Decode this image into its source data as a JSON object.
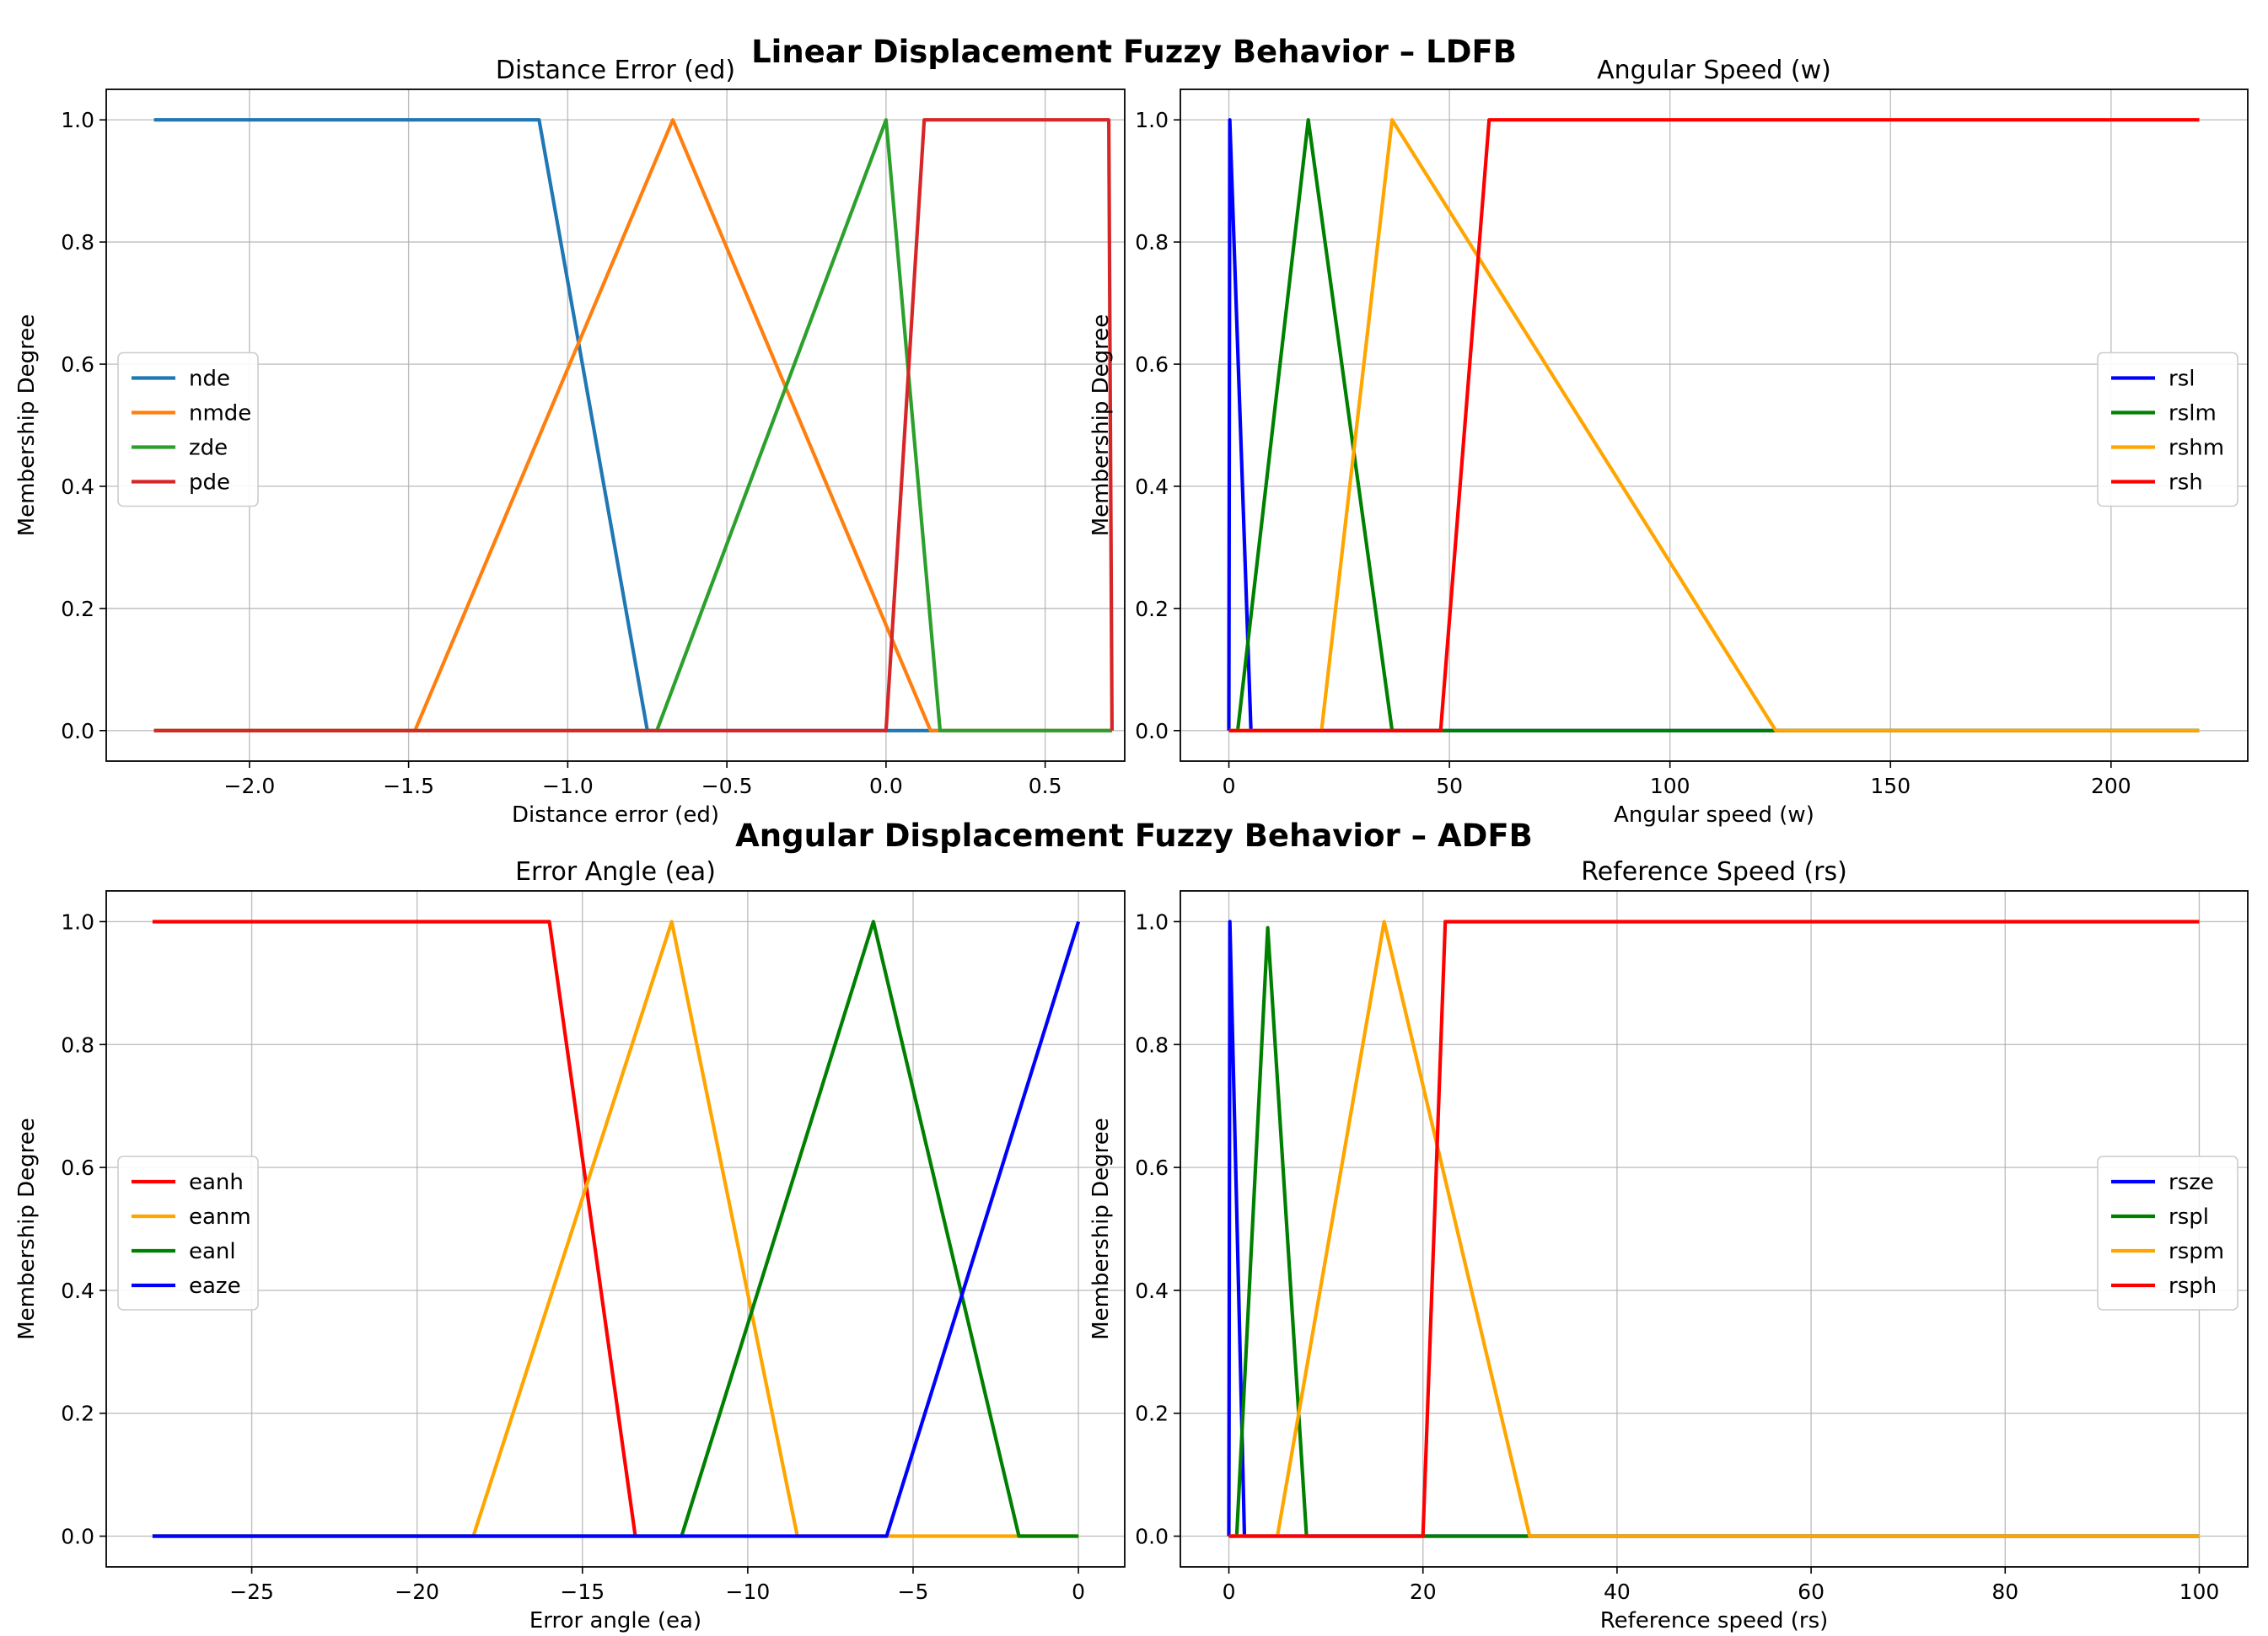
{
  "suptitles": {
    "top": "Linear Displacement Fuzzy Behavior – LDFB",
    "bottom": "Angular Displacement Fuzzy Behavior – ADFB"
  },
  "chart_data": [
    {
      "type": "line",
      "title": "Distance Error (ed)",
      "xlabel": "Distance error (ed)",
      "ylabel": "Membership Degree",
      "xlim": [
        -2.45,
        0.75
      ],
      "ylim": [
        -0.05,
        1.05
      ],
      "xticks": [
        -2.0,
        -1.5,
        -1.0,
        -0.5,
        0.0,
        0.5
      ],
      "xtick_labels": [
        "−2.0",
        "−1.5",
        "−1.0",
        "−0.5",
        "0.0",
        "0.5"
      ],
      "yticks": [
        0.0,
        0.2,
        0.4,
        0.6,
        0.8,
        1.0
      ],
      "ytick_labels": [
        "0.0",
        "0.2",
        "0.4",
        "0.6",
        "0.8",
        "1.0"
      ],
      "grid": true,
      "legend": "center-left",
      "series": [
        {
          "name": "nde",
          "color": "#1f77b4",
          "x": [
            -2.3,
            -1.09,
            -0.75,
            0.71
          ],
          "y": [
            1,
            1,
            0,
            0
          ]
        },
        {
          "name": "nmde",
          "color": "#ff7f0e",
          "x": [
            -2.3,
            -1.48,
            -0.67,
            0.14,
            0.71
          ],
          "y": [
            0,
            0,
            1,
            0,
            0
          ]
        },
        {
          "name": "zde",
          "color": "#2ca02c",
          "x": [
            -2.3,
            -0.72,
            0.0,
            0.17,
            0.71
          ],
          "y": [
            0,
            0,
            1,
            0,
            0
          ]
        },
        {
          "name": "pde",
          "color": "#d62728",
          "x": [
            -2.3,
            0.0,
            0.12,
            0.7,
            0.71
          ],
          "y": [
            0,
            0,
            1,
            1,
            0
          ]
        }
      ]
    },
    {
      "type": "line",
      "title": "Angular Speed (w)",
      "xlabel": "Angular speed (w)",
      "ylabel": "Membership Degree",
      "xlim": [
        -11,
        231
      ],
      "ylim": [
        -0.05,
        1.05
      ],
      "xticks": [
        0,
        50,
        100,
        150,
        200
      ],
      "xtick_labels": [
        "0",
        "50",
        "100",
        "150",
        "200"
      ],
      "yticks": [
        0.0,
        0.2,
        0.4,
        0.6,
        0.8,
        1.0
      ],
      "ytick_labels": [
        "0.0",
        "0.2",
        "0.4",
        "0.6",
        "0.8",
        "1.0"
      ],
      "grid": true,
      "legend": "center-right",
      "series": [
        {
          "name": "rsl",
          "color": "#0000ff",
          "x": [
            0,
            0.2,
            5,
            220
          ],
          "y": [
            0,
            1,
            0,
            0
          ]
        },
        {
          "name": "rslm",
          "color": "#008000",
          "x": [
            0,
            2,
            18,
            37,
            220
          ],
          "y": [
            0,
            0,
            1,
            0,
            0
          ]
        },
        {
          "name": "rshm",
          "color": "#ffa500",
          "x": [
            0,
            21,
            37,
            124,
            220
          ],
          "y": [
            0,
            0,
            1,
            0,
            0
          ]
        },
        {
          "name": "rsh",
          "color": "#ff0000",
          "x": [
            0,
            48,
            59,
            220
          ],
          "y": [
            0,
            0,
            1,
            1
          ]
        }
      ]
    },
    {
      "type": "line",
      "title": "Error Angle (ea)",
      "xlabel": "Error angle (ea)",
      "ylabel": "Membership Degree",
      "xlim": [
        -29.4,
        1.4
      ],
      "ylim": [
        -0.05,
        1.05
      ],
      "xticks": [
        -25,
        -20,
        -15,
        -10,
        -5,
        0
      ],
      "xtick_labels": [
        "−25",
        "−20",
        "−15",
        "−10",
        "−5",
        "0"
      ],
      "yticks": [
        0.0,
        0.2,
        0.4,
        0.6,
        0.8,
        1.0
      ],
      "ytick_labels": [
        "0.0",
        "0.2",
        "0.4",
        "0.6",
        "0.8",
        "1.0"
      ],
      "grid": true,
      "legend": "center-left",
      "series": [
        {
          "name": "eanh",
          "color": "#ff0000",
          "x": [
            -28,
            -16,
            -13.4
          ],
          "y": [
            1,
            1,
            0
          ]
        },
        {
          "name": "eanm",
          "color": "#ffa500",
          "x": [
            -28,
            -18.3,
            -12.3,
            -8.5,
            0
          ],
          "y": [
            0,
            0,
            1,
            0,
            0
          ]
        },
        {
          "name": "eanl",
          "color": "#008000",
          "x": [
            -28,
            -12,
            -6.2,
            -1.8,
            0
          ],
          "y": [
            0,
            0,
            1,
            0,
            0
          ]
        },
        {
          "name": "eaze",
          "color": "#0000ff",
          "x": [
            -28,
            -5.8,
            0
          ],
          "y": [
            0,
            0,
            1
          ]
        }
      ]
    },
    {
      "type": "line",
      "title": "Reference Speed (rs)",
      "xlabel": "Reference speed (rs)",
      "ylabel": "Membership Degree",
      "xlim": [
        -5,
        105
      ],
      "ylim": [
        -0.05,
        1.05
      ],
      "xticks": [
        0,
        20,
        40,
        60,
        80,
        100
      ],
      "xtick_labels": [
        "0",
        "20",
        "40",
        "60",
        "80",
        "100"
      ],
      "yticks": [
        0.0,
        0.2,
        0.4,
        0.6,
        0.8,
        1.0
      ],
      "ytick_labels": [
        "0.0",
        "0.2",
        "0.4",
        "0.6",
        "0.8",
        "1.0"
      ],
      "grid": true,
      "legend": "center-right",
      "series": [
        {
          "name": "rsze",
          "color": "#0000ff",
          "x": [
            0,
            0.1,
            1.6,
            100
          ],
          "y": [
            0,
            1,
            0,
            0
          ]
        },
        {
          "name": "rspl",
          "color": "#008000",
          "x": [
            0,
            0.8,
            4,
            8,
            100
          ],
          "y": [
            0,
            0,
            0.99,
            0,
            0
          ]
        },
        {
          "name": "rspm",
          "color": "#ffa500",
          "x": [
            0,
            5,
            16,
            31,
            100
          ],
          "y": [
            0,
            0,
            1,
            0,
            0
          ]
        },
        {
          "name": "rsph",
          "color": "#ff0000",
          "x": [
            0,
            20,
            22.3,
            100
          ],
          "y": [
            0,
            0,
            1,
            1
          ]
        }
      ]
    }
  ]
}
